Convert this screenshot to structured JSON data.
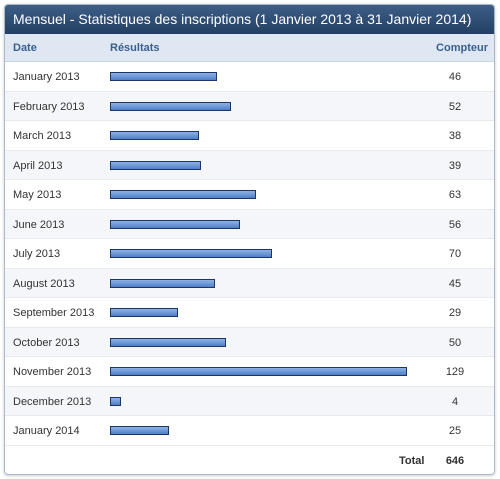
{
  "header": {
    "title": "Mensuel - Statistiques des inscriptions (1 Janvier 2013 à 31 Janvier 2014)"
  },
  "table": {
    "columns": [
      "Date",
      "Résultats",
      "Compteur"
    ],
    "rows": [
      {
        "date": "January 2013",
        "count": 46
      },
      {
        "date": "February 2013",
        "count": 52
      },
      {
        "date": "March 2013",
        "count": 38
      },
      {
        "date": "April 2013",
        "count": 39
      },
      {
        "date": "May 2013",
        "count": 63
      },
      {
        "date": "June 2013",
        "count": 56
      },
      {
        "date": "July 2013",
        "count": 70
      },
      {
        "date": "August 2013",
        "count": 45
      },
      {
        "date": "September 2013",
        "count": 29
      },
      {
        "date": "October 2013",
        "count": 50
      },
      {
        "date": "November 2013",
        "count": 129
      },
      {
        "date": "December 2013",
        "count": 4
      },
      {
        "date": "January 2014",
        "count": 25
      }
    ],
    "total_label": "Total",
    "total": 646
  }
}
